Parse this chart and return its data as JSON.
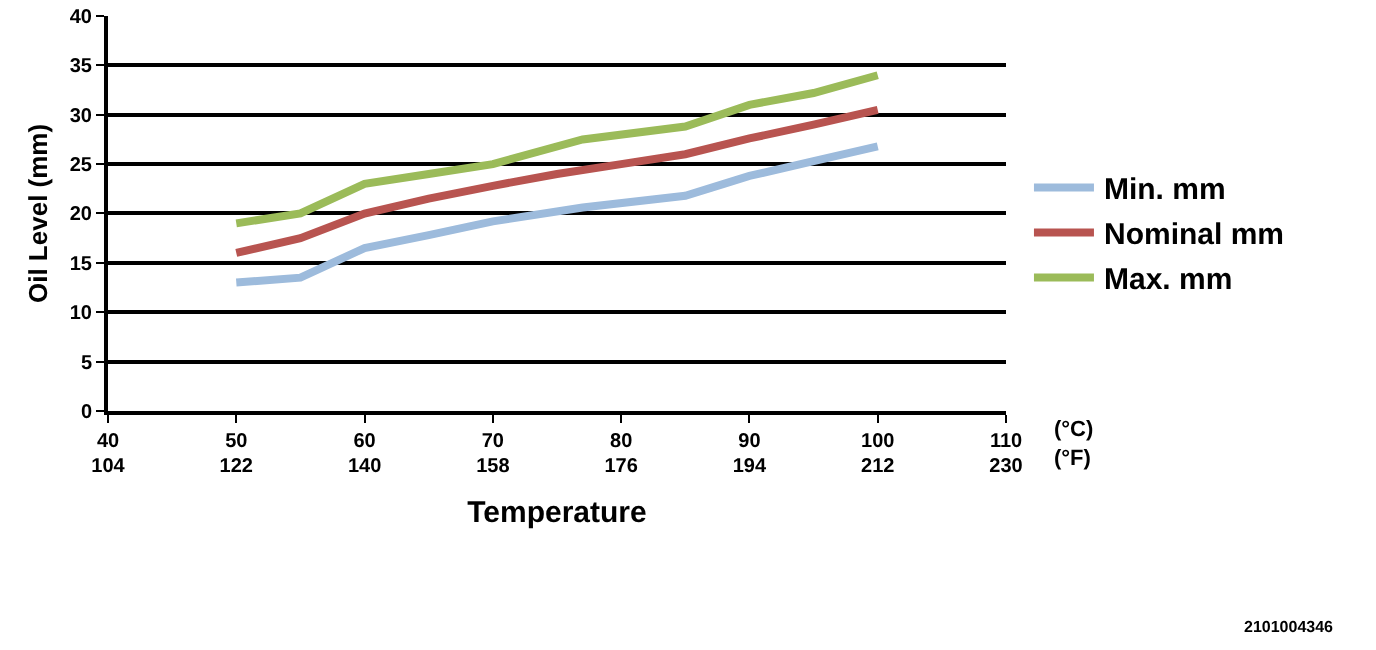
{
  "chart_data": {
    "type": "line",
    "xlabel": "Temperature",
    "ylabel": "Oil Level (mm)",
    "xlim": [
      40,
      110
    ],
    "xticks": [
      40,
      50,
      60,
      70,
      80,
      90,
      100,
      110
    ],
    "x2lim": [
      104,
      230
    ],
    "x2ticks": [
      104,
      122,
      140,
      158,
      176,
      194,
      212,
      230
    ],
    "ylim": [
      0,
      40
    ],
    "yticks": [
      0,
      5,
      10,
      15,
      20,
      25,
      30,
      35,
      40
    ],
    "grid": "y",
    "legend": "right",
    "marker": "none",
    "line_style": "solid",
    "annotations": [
      "(°C)\n(°F)",
      "2101004346"
    ],
    "series": [
      {
        "name": "Min. mm",
        "color": "#9dbbdc",
        "x": [
          50,
          55,
          60,
          65,
          70,
          77,
          85,
          88,
          90,
          95,
          100
        ],
        "values": [
          13,
          13.5,
          16.5,
          17.8,
          19.2,
          20.6,
          21.8,
          23,
          23.8,
          25.3,
          26.8
        ]
      },
      {
        "name": "Nominal mm",
        "color": "#b85450",
        "x": [
          50,
          55,
          60,
          65,
          70,
          75,
          80,
          85,
          90,
          95,
          100
        ],
        "values": [
          16,
          17.5,
          20,
          21.5,
          22.8,
          24,
          25,
          26,
          27.6,
          29,
          30.5
        ]
      },
      {
        "name": "Max. mm",
        "color": "#9bbb59",
        "x": [
          50,
          55,
          60,
          65,
          70,
          77,
          85,
          90,
          95,
          100
        ],
        "values": [
          19,
          20,
          23,
          24,
          25,
          27.5,
          28.8,
          31,
          32.2,
          34
        ]
      }
    ]
  }
}
